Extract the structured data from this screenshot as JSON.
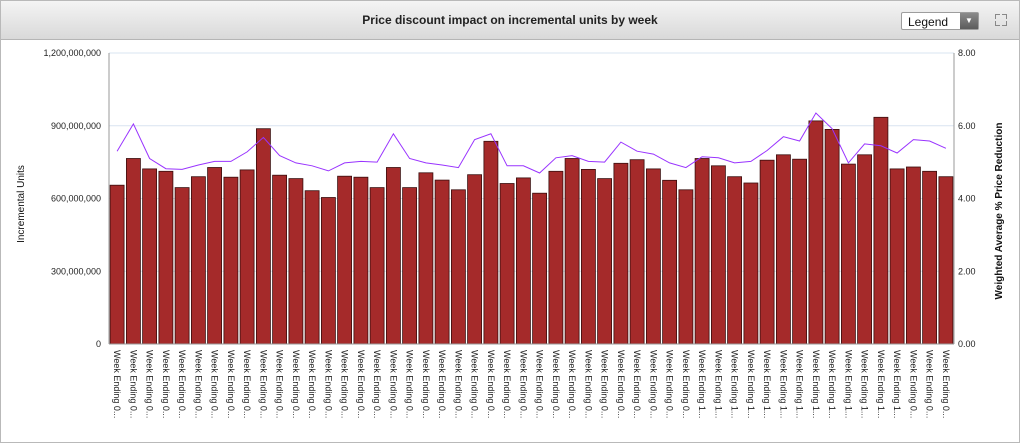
{
  "header": {
    "title": "Price discount impact on incremental units by week",
    "legend_label": "Legend"
  },
  "chart_data": {
    "type": "bar",
    "title": "Price discount impact on incremental units by week",
    "ylabel": "Incremental Units",
    "y2label": "Weighted Average % Price Reduction",
    "ylim": [
      0,
      1200000000
    ],
    "y2lim": [
      0,
      8
    ],
    "yticks": [
      "0",
      "300,000,000",
      "600,000,000",
      "900,000,000",
      "1,200,000,000"
    ],
    "y2ticks": [
      "0.00",
      "2.00",
      "4.00",
      "6.00",
      "8.00"
    ],
    "grid": true,
    "bar_color": "#a52a2a",
    "line_color": "#9933ff",
    "categories": [
      "Week Ending 0...",
      "Week Ending 0...",
      "Week Ending 0...",
      "Week Ending 0...",
      "Week Ending 0...",
      "Week Ending 0...",
      "Week Ending 0...",
      "Week Ending 0...",
      "Week Ending 0...",
      "Week Ending 0...",
      "Week Ending 0...",
      "Week Ending 0...",
      "Week Ending 0...",
      "Week Ending 0...",
      "Week Ending 0...",
      "Week Ending 0...",
      "Week Ending 0...",
      "Week Ending 0...",
      "Week Ending 0...",
      "Week Ending 0...",
      "Week Ending 0...",
      "Week Ending 0...",
      "Week Ending 0...",
      "Week Ending 0...",
      "Week Ending 0...",
      "Week Ending 0...",
      "Week Ending 0...",
      "Week Ending 0...",
      "Week Ending 0...",
      "Week Ending 0...",
      "Week Ending 0...",
      "Week Ending 0...",
      "Week Ending 0...",
      "Week Ending 0...",
      "Week Ending 0...",
      "Week Ending 0...",
      "Week Ending 1...",
      "Week Ending 1...",
      "Week Ending 1...",
      "Week Ending 1...",
      "Week Ending 1...",
      "Week Ending 1...",
      "Week Ending 1...",
      "Week Ending 1...",
      "Week Ending 1...",
      "Week Ending 1...",
      "Week Ending 1...",
      "Week Ending 1...",
      "Week Ending 1...",
      "Week Ending 0...",
      "Week Ending 0...",
      "Week Ending 0..."
    ],
    "series": [
      {
        "type": "bar",
        "values": [
          655000000,
          765000000,
          722000000,
          712000000,
          645000000,
          690000000,
          728000000,
          688000000,
          718000000,
          888000000,
          696000000,
          682000000,
          632000000,
          604000000,
          692000000,
          688000000,
          645000000,
          728000000,
          645000000,
          706000000,
          676000000,
          636000000,
          698000000,
          836000000,
          662000000,
          685000000,
          622000000,
          712000000,
          765000000,
          720000000,
          682000000,
          745000000,
          760000000,
          722000000,
          675000000,
          636000000,
          765000000,
          735000000,
          690000000,
          664000000,
          758000000,
          780000000,
          762000000,
          920000000,
          885000000,
          742000000,
          780000000,
          935000000,
          722000000,
          730000000,
          712000000,
          690000000
        ]
      },
      {
        "type": "line",
        "axis": "right",
        "values": [
          5.3,
          6.05,
          5.1,
          4.82,
          4.8,
          4.92,
          5.02,
          5.02,
          5.28,
          5.68,
          5.18,
          4.98,
          4.9,
          4.76,
          4.98,
          5.02,
          5.0,
          5.78,
          5.1,
          4.98,
          4.92,
          4.85,
          5.62,
          5.78,
          4.9,
          4.9,
          4.7,
          5.12,
          5.18,
          5.02,
          5.0,
          5.55,
          5.3,
          5.22,
          4.98,
          4.85,
          5.15,
          5.12,
          4.98,
          5.02,
          5.32,
          5.7,
          5.58,
          6.35,
          5.92,
          4.98,
          5.5,
          5.45,
          5.25,
          5.62,
          5.58,
          5.38
        ]
      }
    ]
  }
}
